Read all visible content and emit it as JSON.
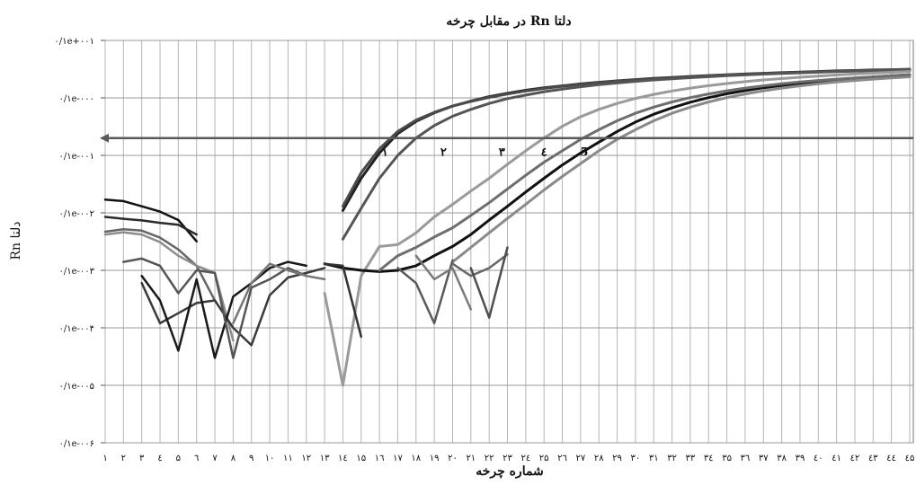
{
  "chart_data": {
    "type": "line",
    "title": "دلتا Rn در مقابل چرخه",
    "xlabel": "شماره چرخه",
    "ylabel": "دلتا Rn",
    "y_scale": "log",
    "ylim": [
      1e-06,
      10
    ],
    "grid": true,
    "y_tick_labels": [
      "۰/۱e+۰۰۱",
      "۰/۱e-۰۰۰",
      "۰/۱e-۰۰۱",
      "۰/۱e-۰۰۲",
      "۰/۱e-۰۰۳",
      "۰/۱e-۰۰۴",
      "۰/۱e-۰۰۵",
      "۰/۱e-۰۰۶"
    ],
    "x_tick_labels": [
      "۱",
      "۲",
      "۳",
      "٤",
      "۵",
      "٦",
      "۷",
      "۸",
      "۹",
      "۱۰",
      "۱۱",
      "۱۲",
      "۱۳",
      "۱٤",
      "۱۵",
      "۱٦",
      "۱۷",
      "۱۸",
      "۱۹",
      "۲۰",
      "۲۱",
      "۲۲",
      "۲۳",
      "۲٤",
      "۲۵",
      "۲٦",
      "۲۷",
      "۲۸",
      "۲۹",
      "۳۰",
      "۳۱",
      "۳۲",
      "۳۳",
      "۳٤",
      "۳۵",
      "۳٦",
      "۳۷",
      "۳۸",
      "۳۹",
      "٤۰",
      "٤۱",
      "٤۲",
      "٤۳",
      "٤٤",
      "٤۵"
    ],
    "threshold": 0.2,
    "annotations": [
      "۱",
      "۲",
      "۳",
      "٤",
      "5"
    ],
    "series": [
      {
        "color": "#111111",
        "x": [
          1,
          2,
          3,
          4,
          5,
          6
        ],
        "y": [
          0.017,
          0.016,
          0.013,
          0.0105,
          0.0075,
          0.0032
        ]
      },
      {
        "color": "#2b2b2b",
        "x": [
          1,
          2,
          3,
          4,
          5,
          6
        ],
        "y": [
          0.0085,
          0.0079,
          0.0074,
          0.0067,
          0.0062,
          0.0042
        ]
      },
      {
        "color": "#666666",
        "x": [
          1,
          2,
          3,
          4,
          5,
          6,
          7
        ],
        "y": [
          0.0047,
          0.0052,
          0.0049,
          0.0037,
          0.0023,
          0.0012,
          0.0003
        ]
      },
      {
        "color": "#8c8c8c",
        "x": [
          1,
          2,
          3,
          4,
          5,
          6,
          7,
          8
        ],
        "y": [
          0.0042,
          0.0046,
          0.0042,
          0.0031,
          0.0018,
          0.0012,
          0.0009,
          6e-05
        ]
      },
      {
        "color": "#3a3a3a",
        "x": [
          3,
          4,
          5,
          6,
          7,
          8,
          9,
          10,
          11,
          12,
          13
        ],
        "y": [
          0.0006,
          0.00012,
          0.00018,
          0.00027,
          0.0003,
          0.0001,
          5e-05,
          0.00037,
          0.00075,
          0.0009,
          0.0011
        ]
      },
      {
        "color": "#1a1a1a",
        "x": [
          3,
          4,
          5,
          6,
          7,
          8,
          9,
          10,
          11,
          12
        ],
        "y": [
          0.0008,
          0.0003,
          4e-05,
          0.0007,
          3e-05,
          0.00035,
          0.0006,
          0.0011,
          0.0014,
          0.0012
        ]
      },
      {
        "color": "#555555",
        "x": [
          2,
          3,
          4,
          5,
          6,
          7,
          8,
          9,
          10,
          11,
          12
        ],
        "y": [
          0.0014,
          0.0016,
          0.0012,
          0.0004,
          0.001,
          0.0009,
          3e-05,
          0.0005,
          0.0007,
          0.0011,
          0.0008
        ]
      },
      {
        "color": "#777777",
        "x": [
          8,
          9,
          10,
          11,
          12,
          13
        ],
        "y": [
          0.00012,
          0.0006,
          0.0013,
          0.001,
          0.0008,
          0.0007
        ],
        "note": ""
      },
      {
        "color": "#222222",
        "x": [
          14,
          15,
          16,
          17,
          18,
          19,
          20,
          21,
          22,
          23,
          24,
          25,
          26,
          27,
          28,
          29,
          30,
          31,
          32,
          33,
          34,
          35,
          36,
          37,
          38,
          39,
          40,
          41,
          42,
          43,
          44,
          45
        ],
        "y": [
          0.011,
          0.04,
          0.11,
          0.24,
          0.39,
          0.55,
          0.72,
          0.88,
          1.05,
          1.2,
          1.36,
          1.5,
          1.62,
          1.75,
          1.87,
          1.98,
          2.08,
          2.18,
          2.27,
          2.36,
          2.45,
          2.53,
          2.6,
          2.68,
          2.75,
          2.82,
          2.88,
          2.95,
          3.0,
          3.06,
          3.1,
          3.15
        ]
      },
      {
        "color": "#4a4a4a",
        "x": [
          14,
          15,
          16,
          17,
          18,
          19,
          20,
          21,
          22,
          23,
          24,
          25,
          26,
          27,
          28,
          29,
          30,
          31,
          32,
          33,
          34,
          35,
          36,
          37,
          38,
          39,
          40,
          41,
          42,
          43,
          44,
          45
        ],
        "y": [
          0.013,
          0.05,
          0.13,
          0.26,
          0.41,
          0.56,
          0.72,
          0.87,
          1.02,
          1.17,
          1.32,
          1.46,
          1.59,
          1.72,
          1.84,
          1.95,
          2.05,
          2.15,
          2.24,
          2.33,
          2.42,
          2.5,
          2.57,
          2.65,
          2.72,
          2.78,
          2.85,
          2.91,
          2.96,
          3.02,
          3.07,
          3.12
        ]
      },
      {
        "color": "#555555",
        "x": [
          14,
          15,
          16,
          17,
          18,
          19,
          20,
          21,
          22,
          23,
          24,
          25,
          26,
          27,
          28,
          29,
          30,
          31,
          32,
          33,
          34,
          35,
          36,
          37,
          38,
          39,
          40,
          41,
          42,
          43,
          44,
          45
        ],
        "y": [
          0.0035,
          0.012,
          0.04,
          0.1,
          0.2,
          0.33,
          0.48,
          0.63,
          0.8,
          0.97,
          1.12,
          1.28,
          1.42,
          1.56,
          1.7,
          1.82,
          1.94,
          2.05,
          2.15,
          2.25,
          2.34,
          2.43,
          2.51,
          2.59,
          2.66,
          2.73,
          2.8,
          2.86,
          2.92,
          2.98,
          3.03,
          3.08
        ]
      },
      {
        "color": "#9a9a9a",
        "x": [
          13,
          14,
          15,
          16,
          17,
          18,
          19,
          20,
          21,
          22,
          23,
          24,
          25,
          26,
          27,
          28,
          29,
          30,
          31,
          32,
          33,
          34,
          35,
          36,
          37,
          38,
          39,
          40,
          41,
          42,
          43,
          44,
          45
        ],
        "y": [
          0.0004,
          1e-05,
          0.0008,
          0.0026,
          0.0028,
          0.0045,
          0.0085,
          0.014,
          0.024,
          0.04,
          0.07,
          0.12,
          0.2,
          0.32,
          0.47,
          0.63,
          0.8,
          0.98,
          1.15,
          1.32,
          1.48,
          1.63,
          1.78,
          1.92,
          2.05,
          2.17,
          2.29,
          2.4,
          2.5,
          2.6,
          2.7,
          2.79,
          2.88
        ]
      },
      {
        "color": "#111111",
        "x": [
          13,
          14,
          15,
          16,
          17,
          18,
          19,
          20,
          21,
          22,
          23,
          24,
          25,
          26,
          27,
          28,
          29,
          30,
          31,
          32,
          33,
          34,
          35,
          36,
          37,
          38,
          39,
          40,
          41,
          42,
          43,
          44,
          45
        ],
        "y": [
          0.0013,
          0.0011,
          0.001,
          0.00095,
          0.001,
          0.0012,
          0.0018,
          0.0026,
          0.0042,
          0.0075,
          0.013,
          0.023,
          0.04,
          0.068,
          0.11,
          0.17,
          0.26,
          0.38,
          0.52,
          0.67,
          0.84,
          1.01,
          1.18,
          1.34,
          1.5,
          1.65,
          1.8,
          1.94,
          2.07,
          2.19,
          2.31,
          2.42,
          2.52
        ]
      },
      {
        "color": "#8a8a8a",
        "x": [
          20,
          21,
          22,
          23,
          24,
          25,
          26,
          27,
          28,
          29,
          30,
          31,
          32,
          33,
          34,
          35,
          36,
          37,
          38,
          39,
          40,
          41,
          42,
          43,
          44,
          45
        ],
        "y": [
          0.0014,
          0.0025,
          0.0045,
          0.008,
          0.014,
          0.025,
          0.043,
          0.072,
          0.12,
          0.19,
          0.28,
          0.4,
          0.54,
          0.69,
          0.85,
          1.01,
          1.17,
          1.33,
          1.48,
          1.62,
          1.76,
          1.89,
          2.01,
          2.12,
          2.23,
          2.33
        ]
      },
      {
        "color": "#6e6e6e",
        "x": [
          16,
          17,
          18,
          19,
          20,
          21,
          22,
          23,
          24,
          25,
          26,
          27,
          28,
          29,
          30,
          31,
          32,
          33,
          34,
          35,
          36,
          37,
          38,
          39,
          40,
          41,
          42,
          43,
          44,
          45
        ],
        "y": [
          0.001,
          0.0018,
          0.0025,
          0.0038,
          0.0055,
          0.009,
          0.015,
          0.026,
          0.045,
          0.076,
          0.12,
          0.19,
          0.28,
          0.4,
          0.54,
          0.69,
          0.85,
          1.01,
          1.17,
          1.33,
          1.48,
          1.62,
          1.76,
          1.89,
          2.01,
          2.12,
          2.23,
          2.33,
          2.43,
          2.52
        ]
      },
      {
        "color": "#333333",
        "x": [
          13,
          14,
          15
        ],
        "y": [
          0.0013,
          0.0012,
          7e-05
        ]
      },
      {
        "color": "#5a5a5a",
        "x": [
          17,
          18,
          19,
          20
        ],
        "y": [
          0.0011,
          0.0006,
          0.00012,
          0.0015
        ]
      },
      {
        "color": "#7a7a7a",
        "x": [
          18,
          19,
          20,
          21
        ],
        "y": [
          0.0018,
          0.0007,
          0.0011,
          0.00021
        ]
      },
      {
        "color": "#666666",
        "x": [
          20,
          21,
          22,
          23
        ],
        "y": [
          0.0013,
          0.0008,
          0.0011,
          0.0019
        ]
      },
      {
        "color": "#4f4f4f",
        "x": [
          21,
          22,
          23
        ],
        "y": [
          0.0011,
          0.00015,
          0.0025
        ]
      }
    ]
  }
}
